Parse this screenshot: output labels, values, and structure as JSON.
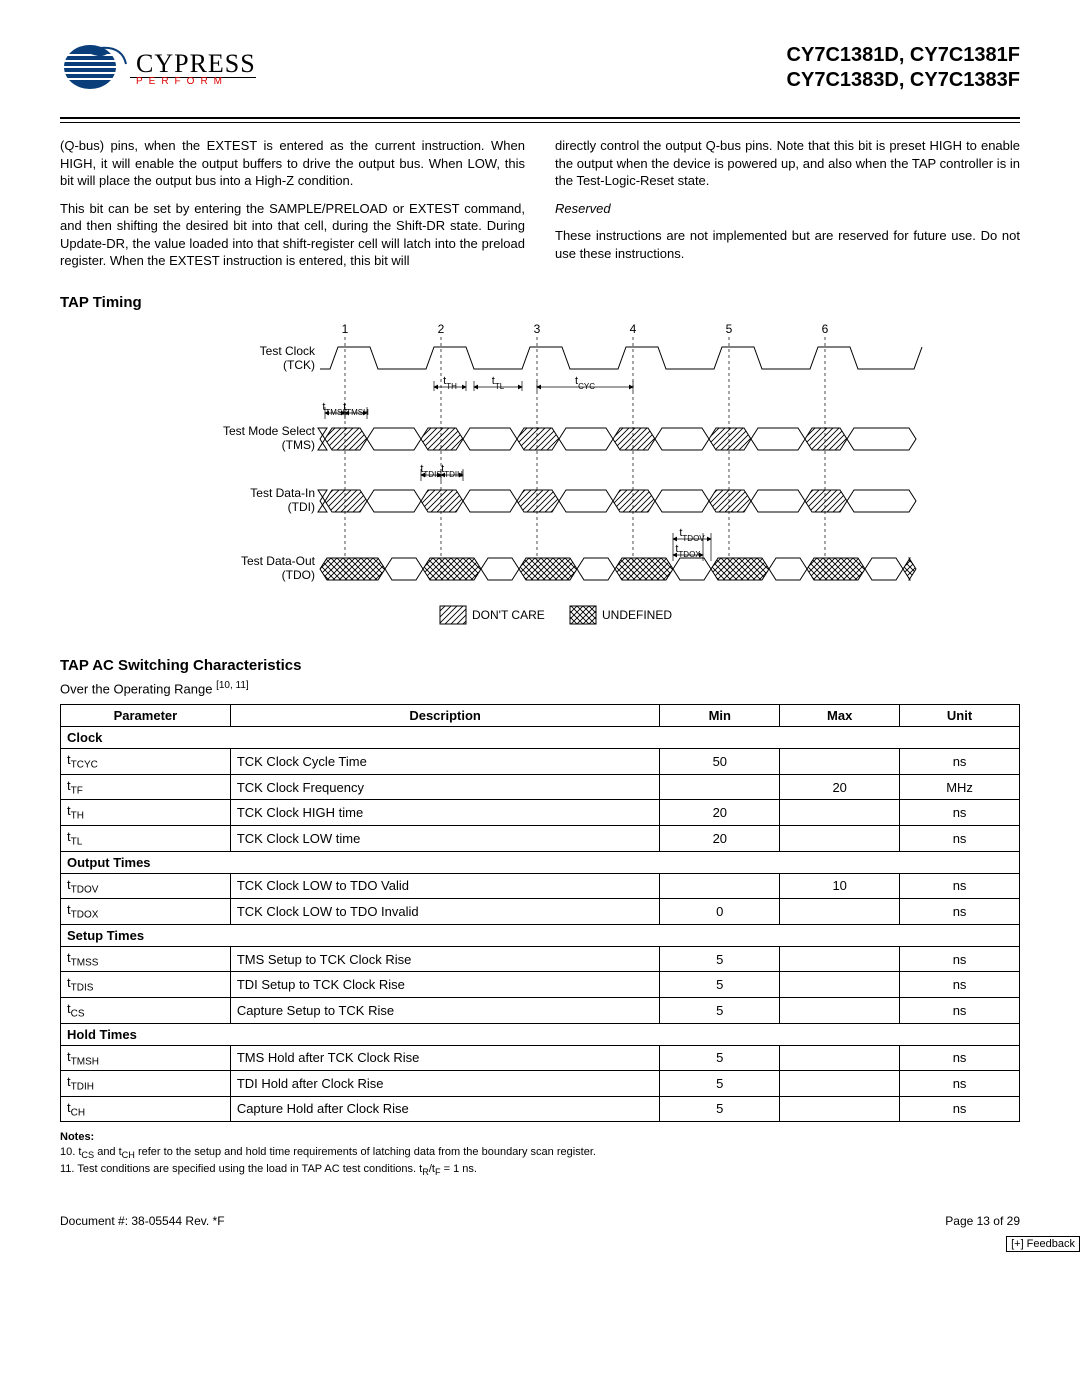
{
  "header": {
    "logo_name": "CYPRESS",
    "tagline": "PERFORM",
    "part_line1": "CY7C1381D, CY7C1381F",
    "part_line2": "CY7C1383D, CY7C1383F"
  },
  "body": {
    "left_p1": "(Q-bus) pins, when the EXTEST is entered as the current instruction. When HIGH, it will enable the output buffers to drive the output bus. When LOW, this bit will place the output bus into a High-Z condition.",
    "left_p2": "This bit can be set by entering the SAMPLE/PRELOAD or EXTEST command, and then shifting the desired bit into that cell, during the Shift-DR state. During Update-DR, the value loaded into that shift-register cell will latch into the preload register. When the EXTEST instruction is entered, this bit will",
    "right_p1": "directly control the output Q-bus pins. Note that this bit is preset HIGH to enable the output when the device is powered up, and also when the TAP controller is in the Test-Logic-Reset state.",
    "right_sub": "Reserved",
    "right_p2": "These instructions are not implemented but are reserved for future use. Do not use these instructions."
  },
  "sections": {
    "tap_timing": "TAP Timing",
    "tap_ac": "TAP AC Switching Characteristics",
    "over_range": "Over the Operating Range ",
    "over_range_sup": "[10, 11]"
  },
  "timing_diagram": {
    "clock_numbers": [
      "1",
      "2",
      "3",
      "4",
      "5",
      "6"
    ],
    "signals": [
      {
        "label_top": "Test Clock",
        "label_bot": "(TCK)"
      },
      {
        "label_top": "Test Mode Select",
        "label_bot": "(TMS)"
      },
      {
        "label_top": "Test Data-In",
        "label_bot": "(TDI)"
      },
      {
        "label_top": "Test Data-Out",
        "label_bot": "(TDO)"
      }
    ],
    "param_labels": {
      "tTH": "t",
      "tTH_sub": "TH",
      "tTL": "t",
      "tTL_sub": "TL",
      "tCYC": "t",
      "tCYC_sub": "CYC",
      "tTMSS": "t",
      "tTMSS_sub": "TMSS",
      "tTMSH": "t",
      "tTMSH_sub": "TMSH",
      "tTDIS": "t",
      "tTDIS_sub": "TDIS",
      "tTDIH": "t",
      "tTDIH_sub": "TDIH",
      "tTDOV": "t",
      "tTDOV_sub": "TDOV",
      "tTDOX": "t",
      "tTDOX_sub": "TDOX"
    },
    "legend": {
      "dontcare": "DON'T CARE",
      "undefined": "UNDEFINED"
    }
  },
  "table": {
    "headers": [
      "Parameter",
      "Description",
      "Min",
      "Max",
      "Unit"
    ],
    "sections": [
      {
        "title": "Clock",
        "rows": [
          {
            "p": "t",
            "sub": "TCYC",
            "desc": "TCK Clock Cycle Time",
            "min": "50",
            "max": "",
            "unit": "ns"
          },
          {
            "p": "t",
            "sub": "TF",
            "desc": "TCK Clock Frequency",
            "min": "",
            "max": "20",
            "unit": "MHz"
          },
          {
            "p": "t",
            "sub": "TH",
            "desc": "TCK Clock HIGH time",
            "min": "20",
            "max": "",
            "unit": "ns"
          },
          {
            "p": "t",
            "sub": "TL",
            "desc": "TCK Clock LOW time",
            "min": "20",
            "max": "",
            "unit": "ns"
          }
        ]
      },
      {
        "title": "Output Times",
        "rows": [
          {
            "p": "t",
            "sub": "TDOV",
            "desc": "TCK Clock LOW to TDO Valid",
            "min": "",
            "max": "10",
            "unit": "ns"
          },
          {
            "p": "t",
            "sub": "TDOX",
            "desc": "TCK Clock LOW to TDO Invalid",
            "min": "0",
            "max": "",
            "unit": "ns"
          }
        ]
      },
      {
        "title": "Setup Times",
        "rows": [
          {
            "p": "t",
            "sub": "TMSS",
            "desc": "TMS Setup to TCK Clock Rise",
            "min": "5",
            "max": "",
            "unit": "ns"
          },
          {
            "p": "t",
            "sub": "TDIS",
            "desc": "TDI Setup to TCK Clock Rise",
            "min": "5",
            "max": "",
            "unit": "ns"
          },
          {
            "p": "t",
            "sub": "CS",
            "desc": "Capture Setup to TCK Rise",
            "min": "5",
            "max": "",
            "unit": "ns"
          }
        ]
      },
      {
        "title": "Hold Times",
        "rows": [
          {
            "p": "t",
            "sub": "TMSH",
            "desc": "TMS Hold after TCK Clock Rise",
            "min": "5",
            "max": "",
            "unit": "ns"
          },
          {
            "p": "t",
            "sub": "TDIH",
            "desc": "TDI Hold after Clock Rise",
            "min": "5",
            "max": "",
            "unit": "ns"
          },
          {
            "p": "t",
            "sub": "CH",
            "desc": "Capture Hold after Clock Rise",
            "min": "5",
            "max": "",
            "unit": "ns"
          }
        ]
      }
    ]
  },
  "notes": {
    "title": "Notes:",
    "n10_pre": "10. t",
    "n10_sub1": "CS",
    "n10_mid": " and t",
    "n10_sub2": "CH",
    "n10_post": " refer to the setup and hold time requirements of latching data from the boundary scan register.",
    "n11_pre": "11. Test conditions are specified using the load in TAP AC test conditions. t",
    "n11_sub1": "R",
    "n11_mid": "/t",
    "n11_sub2": "F",
    "n11_post": " = 1 ns."
  },
  "footer": {
    "doc": "Document #: 38-05544 Rev. *F",
    "page": "Page 13 of 29",
    "feedback": "[+] Feedback"
  },
  "colors": {
    "logo_blue": "#0a3e7a",
    "tagline_red": "#c8102e",
    "line_black": "#000000"
  }
}
